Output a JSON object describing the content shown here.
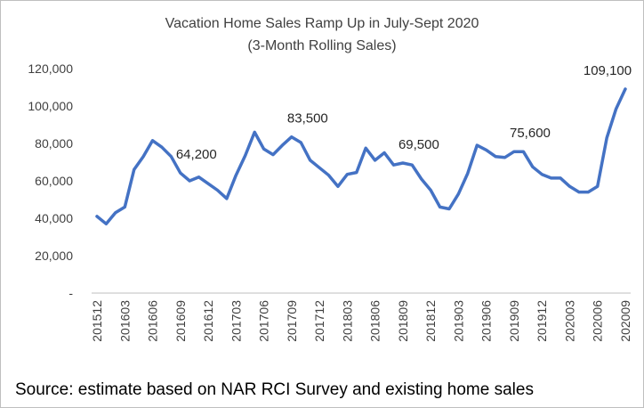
{
  "chart_data": {
    "type": "line",
    "title": "Vacation Home Sales Ramp Up in July-Sept 2020",
    "subtitle": "(3-Month Rolling Sales)",
    "xlabel": "",
    "ylabel": "",
    "ylim": [
      0,
      120000
    ],
    "y_ticks": [
      "-",
      "20,000",
      "40,000",
      "60,000",
      "80,000",
      "100,000",
      "120,000"
    ],
    "grid": false,
    "legend": "none",
    "x_tick_labels": [
      "201512",
      "201603",
      "201606",
      "201609",
      "201612",
      "201703",
      "201706",
      "201709",
      "201712",
      "201803",
      "201806",
      "201809",
      "201812",
      "201903",
      "201906",
      "201909",
      "201912",
      "202003",
      "202006",
      "202009"
    ],
    "x": [
      "201512",
      "201601",
      "201602",
      "201603",
      "201604",
      "201605",
      "201606",
      "201607",
      "201608",
      "201609",
      "201610",
      "201611",
      "201612",
      "201701",
      "201702",
      "201703",
      "201704",
      "201705",
      "201706",
      "201707",
      "201708",
      "201709",
      "201710",
      "201711",
      "201712",
      "201801",
      "201802",
      "201803",
      "201804",
      "201805",
      "201806",
      "201807",
      "201808",
      "201809",
      "201810",
      "201811",
      "201812",
      "201901",
      "201902",
      "201903",
      "201904",
      "201905",
      "201906",
      "201907",
      "201908",
      "201909",
      "201910",
      "201911",
      "201912",
      "202001",
      "202002",
      "202003",
      "202004",
      "202005",
      "202006",
      "202007",
      "202008",
      "202009"
    ],
    "series": [
      {
        "values": [
          41000,
          37000,
          43000,
          46000,
          66000,
          73000,
          81500,
          78000,
          73000,
          64200,
          60000,
          62000,
          58500,
          55000,
          50500,
          63000,
          73500,
          86000,
          77000,
          74000,
          79000,
          83500,
          80500,
          71000,
          67000,
          63000,
          57000,
          63500,
          64500,
          77500,
          71000,
          75000,
          68500,
          69500,
          68500,
          61000,
          55000,
          46000,
          45000,
          53000,
          64000,
          79000,
          76500,
          73000,
          72500,
          75600,
          75600,
          67500,
          63500,
          61500,
          61500,
          57000,
          54000,
          54000,
          57000,
          83000,
          98500,
          109100
        ]
      }
    ],
    "annotations": [
      {
        "text": "64,200",
        "x": "201609"
      },
      {
        "text": "83,500",
        "x": "201709"
      },
      {
        "text": "69,500",
        "x": "201809"
      },
      {
        "text": "75,600",
        "x": "201909"
      },
      {
        "text": "109,100",
        "x": "202009"
      }
    ],
    "colors": {
      "line": "#4472C4",
      "axis": "#bfbfbf",
      "text": "#404040"
    }
  },
  "footer": {
    "source": "Source: estimate based on NAR RCI Survey and existing home sales"
  }
}
